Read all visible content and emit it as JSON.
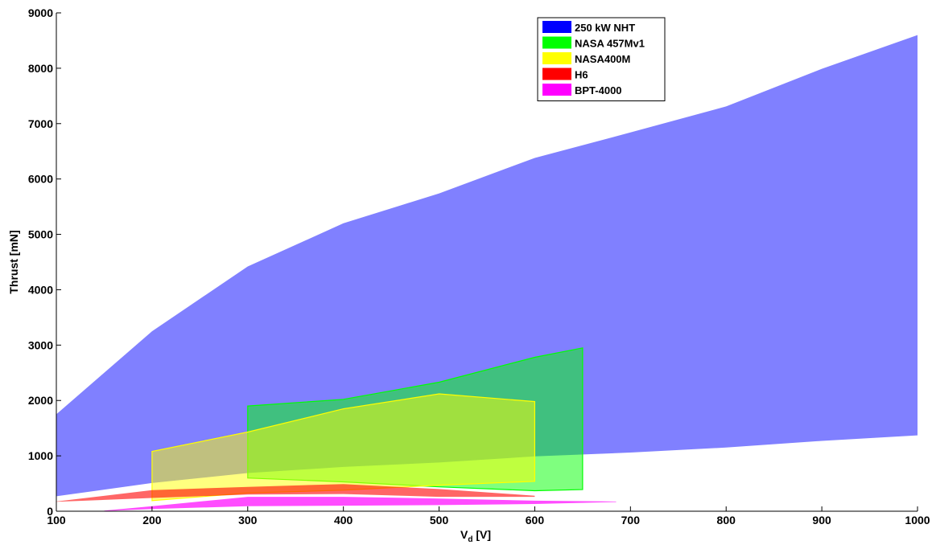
{
  "chart_data": {
    "type": "area",
    "title": "",
    "xlabel_main": "V",
    "xlabel_sub": "d",
    "xlabel_unit": " [V]",
    "ylabel": "Thrust [mN]",
    "xlim": [
      100,
      1000
    ],
    "ylim": [
      0,
      9000
    ],
    "xticks": [
      100,
      200,
      300,
      400,
      500,
      600,
      700,
      800,
      900,
      1000
    ],
    "yticks": [
      0,
      1000,
      2000,
      3000,
      4000,
      5000,
      6000,
      7000,
      8000,
      9000
    ],
    "grid": false,
    "legend_position": "top-right",
    "series": [
      {
        "name": "250 kW NHT",
        "color": "#0000ff",
        "fill": "#8080ff",
        "fill_opacity": 1.0,
        "outline": false,
        "upper": [
          [
            100,
            1750
          ],
          [
            200,
            3250
          ],
          [
            300,
            4420
          ],
          [
            400,
            5200
          ],
          [
            500,
            5740
          ],
          [
            600,
            6380
          ],
          [
            700,
            6840
          ],
          [
            800,
            7310
          ],
          [
            900,
            7990
          ],
          [
            1000,
            8600
          ]
        ],
        "lower": [
          [
            100,
            270
          ],
          [
            200,
            510
          ],
          [
            300,
            690
          ],
          [
            400,
            800
          ],
          [
            500,
            880
          ],
          [
            600,
            990
          ],
          [
            700,
            1060
          ],
          [
            800,
            1150
          ],
          [
            900,
            1270
          ],
          [
            1000,
            1370
          ]
        ]
      },
      {
        "name": "NASA 457Mv1",
        "color": "#00ff00",
        "fill": "#00ff00",
        "fill_opacity": 0.5,
        "outline": true,
        "upper": [
          [
            300,
            1900
          ],
          [
            400,
            2020
          ],
          [
            500,
            2330
          ],
          [
            600,
            2780
          ],
          [
            650,
            2950
          ]
        ],
        "lower": [
          [
            300,
            600
          ],
          [
            400,
            530
          ],
          [
            500,
            440
          ],
          [
            600,
            370
          ],
          [
            650,
            390
          ]
        ]
      },
      {
        "name": "NASA400M",
        "color": "#ffff00",
        "fill": "#ffff00",
        "fill_opacity": 0.5,
        "outline": true,
        "upper": [
          [
            200,
            1080
          ],
          [
            300,
            1430
          ],
          [
            400,
            1850
          ],
          [
            500,
            2120
          ],
          [
            600,
            1980
          ]
        ],
        "lower": [
          [
            200,
            190
          ],
          [
            300,
            330
          ],
          [
            400,
            380
          ],
          [
            500,
            470
          ],
          [
            600,
            540
          ]
        ]
      },
      {
        "name": "H6",
        "color": "#ff0000",
        "fill": "#ff0000",
        "fill_opacity": 0.6,
        "outline": false,
        "upper": [
          [
            100,
            175
          ],
          [
            200,
            380
          ],
          [
            300,
            440
          ],
          [
            400,
            490
          ],
          [
            500,
            400
          ],
          [
            600,
            280
          ]
        ],
        "lower": [
          [
            100,
            170
          ],
          [
            200,
            240
          ],
          [
            300,
            300
          ],
          [
            400,
            310
          ],
          [
            500,
            260
          ],
          [
            600,
            260
          ]
        ]
      },
      {
        "name": "BPT-4000",
        "color": "#ff00ff",
        "fill": "#ff00ff",
        "fill_opacity": 0.7,
        "outline": false,
        "upper": [
          [
            150,
            10
          ],
          [
            200,
            90
          ],
          [
            300,
            260
          ],
          [
            400,
            260
          ],
          [
            500,
            230
          ],
          [
            600,
            190
          ],
          [
            685,
            175
          ]
        ],
        "lower": [
          [
            150,
            5
          ],
          [
            200,
            40
          ],
          [
            300,
            90
          ],
          [
            400,
            100
          ],
          [
            500,
            110
          ],
          [
            600,
            130
          ],
          [
            685,
            165
          ]
        ]
      }
    ]
  }
}
